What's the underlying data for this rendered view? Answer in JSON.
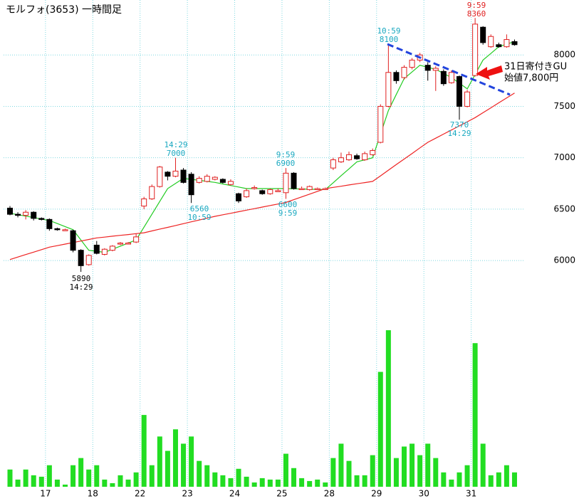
{
  "chart_data": {
    "type": "candlestick",
    "title": "モルフォ(3653) 一時間足",
    "categories": [
      null,
      null,
      null,
      null,
      null,
      "17",
      null,
      null,
      null,
      null,
      null,
      "18",
      null,
      null,
      null,
      null,
      null,
      "22",
      null,
      null,
      null,
      null,
      null,
      "23",
      null,
      null,
      null,
      null,
      null,
      "24",
      null,
      null,
      null,
      null,
      null,
      "25",
      null,
      null,
      null,
      null,
      null,
      "28",
      null,
      null,
      null,
      null,
      null,
      "29",
      null,
      null,
      null,
      null,
      null,
      "30",
      null,
      null,
      null,
      null,
      null,
      "31",
      null,
      null,
      null,
      null,
      null
    ],
    "open": [
      6510,
      6450,
      6440,
      6470,
      6410,
      6400,
      6310,
      6300,
      6290,
      6100,
      5960,
      6150,
      6060,
      6100,
      6160,
      6170,
      6180,
      6530,
      6600,
      6720,
      6860,
      6820,
      6880,
      6840,
      6760,
      6770,
      6790,
      6790,
      6740,
      6650,
      6620,
      6700,
      6680,
      6650,
      6680,
      6660,
      6850,
      6700,
      6690,
      6700,
      6700,
      6900,
      6960,
      6980,
      7020,
      6980,
      7030,
      7150,
      7500,
      7830,
      7780,
      7880,
      7950,
      7900,
      7850,
      7840,
      7730,
      7790,
      7500,
      7800,
      8270,
      8080,
      8100,
      8080,
      8130
    ],
    "high": [
      6530,
      6470,
      6490,
      6480,
      6420,
      6410,
      6320,
      6310,
      6300,
      6110,
      6060,
      6190,
      6120,
      6150,
      6180,
      6180,
      6260,
      6620,
      6740,
      6920,
      6870,
      7000,
      6900,
      6860,
      6820,
      6840,
      6820,
      6800,
      6790,
      6660,
      6700,
      6730,
      6690,
      6700,
      6700,
      6900,
      6860,
      6720,
      6730,
      6710,
      6710,
      7000,
      7050,
      7060,
      7040,
      7060,
      7090,
      7520,
      8100,
      7850,
      7900,
      7970,
      8020,
      7930,
      7890,
      7860,
      7850,
      7800,
      7660,
      8360,
      8280,
      8200,
      8120,
      8200,
      8150
    ],
    "low": [
      6440,
      6420,
      6400,
      6390,
      6390,
      6290,
      6290,
      6290,
      6080,
      5890,
      5950,
      6060,
      6050,
      6090,
      6150,
      6160,
      6170,
      6500,
      6590,
      6710,
      6780,
      6810,
      6750,
      6560,
      6750,
      6760,
      6780,
      6750,
      6730,
      6560,
      6610,
      6690,
      6640,
      6640,
      6670,
      6600,
      6690,
      6690,
      6680,
      6690,
      6690,
      6880,
      6950,
      6970,
      6980,
      6970,
      7020,
      7140,
      7490,
      7720,
      7760,
      7860,
      7930,
      7750,
      7650,
      7700,
      7720,
      7370,
      7490,
      7790,
      8100,
      8070,
      8070,
      8070,
      8090
    ],
    "close": [
      6450,
      6440,
      6470,
      6410,
      6400,
      6310,
      6300,
      6300,
      6100,
      5950,
      6050,
      6070,
      6110,
      6140,
      6170,
      6170,
      6230,
      6600,
      6720,
      6910,
      6820,
      6870,
      6760,
      6640,
      6800,
      6820,
      6810,
      6760,
      6770,
      6580,
      6680,
      6710,
      6650,
      6690,
      6680,
      6850,
      6700,
      6700,
      6720,
      6700,
      6700,
      6980,
      7000,
      7030,
      6990,
      7040,
      7070,
      7500,
      7830,
      7750,
      7880,
      7950,
      8000,
      7850,
      7870,
      7720,
      7830,
      7500,
      7640,
      8300,
      8120,
      8180,
      8080,
      8150,
      8100
    ],
    "up_color": "#e02020",
    "down_color": "#000000",
    "lines": [
      {
        "color": "#22cc22",
        "values": [
          6460,
          6446,
          6432,
          6418,
          6404,
          6390,
          6360,
          6330,
          6300,
          6200,
          6100,
          6090,
          6080,
          6110,
          6140,
          6170,
          6200,
          6325,
          6450,
          6575,
          6700,
          6750,
          6800,
          6790,
          6780,
          6770,
          6760,
          6745,
          6730,
          6715,
          6700,
          6700,
          6700,
          6700,
          6700,
          6700,
          6698,
          6696,
          6694,
          6692,
          6690,
          6757,
          6825,
          6892,
          6960,
          6980,
          7000,
          7230,
          7460,
          7615,
          7770,
          7835,
          7900,
          7880,
          7860,
          7820,
          7780,
          7725,
          7670,
          7810,
          7950,
          8015,
          8080,
          8105,
          8130
        ]
      },
      {
        "color": "#ee2222",
        "values": [
          6010,
          6034,
          6058,
          6082,
          6106,
          6130,
          6145,
          6160,
          6175,
          6190,
          6205,
          6220,
          6228,
          6237,
          6245,
          6253,
          6262,
          6270,
          6288,
          6306,
          6323,
          6341,
          6359,
          6377,
          6394,
          6412,
          6430,
          6445,
          6460,
          6475,
          6490,
          6505,
          6520,
          6535,
          6550,
          6565,
          6592,
          6619,
          6646,
          6673,
          6700,
          6712,
          6723,
          6735,
          6747,
          6758,
          6770,
          6824,
          6879,
          6933,
          6987,
          7041,
          7096,
          7150,
          7190,
          7230,
          7270,
          7310,
          7350,
          7390,
          7438,
          7486,
          7534,
          7582,
          7630
        ]
      }
    ],
    "volume": {
      "color": "#22dd22",
      "ylim": [
        0,
        220
      ],
      "values": [
        24,
        10,
        24,
        16,
        14,
        30,
        10,
        3,
        30,
        40,
        24,
        30,
        10,
        5,
        16,
        10,
        20,
        100,
        30,
        70,
        50,
        80,
        60,
        70,
        36,
        30,
        20,
        16,
        12,
        25,
        14,
        6,
        12,
        10,
        10,
        46,
        26,
        12,
        8,
        10,
        6,
        40,
        60,
        36,
        16,
        16,
        44,
        160,
        218,
        40,
        56,
        60,
        44,
        60,
        40,
        20,
        10,
        20,
        30,
        200,
        60,
        16,
        20,
        30,
        20
      ]
    },
    "ylim": [
      5800,
      8500
    ],
    "yticks": [
      6000,
      6500,
      7000,
      7500,
      8000
    ],
    "grid": true,
    "annotations": [
      {
        "lines": [
          "14:29",
          "7000"
        ],
        "color": "#19a8c0"
      },
      {
        "lines": [
          "6560",
          "10:59"
        ],
        "color": "#19a8c0"
      },
      {
        "lines": [
          "9:59",
          "6900"
        ],
        "color": "#19a8c0"
      },
      {
        "lines": [
          "6600",
          "9:59"
        ],
        "color": "#19a8c0"
      },
      {
        "lines": [
          "10:59",
          "8100"
        ],
        "color": "#19a8c0"
      },
      {
        "lines": [
          "7370",
          "14:29"
        ],
        "color": "#19a8c0"
      },
      {
        "lines": [
          "9:59",
          "8360"
        ],
        "color": "#e02020"
      },
      {
        "lines": [
          "5890",
          "14:29"
        ],
        "color": "#000000"
      }
    ],
    "callout": [
      "31日寄付きGU",
      "始値7,800円"
    ]
  }
}
